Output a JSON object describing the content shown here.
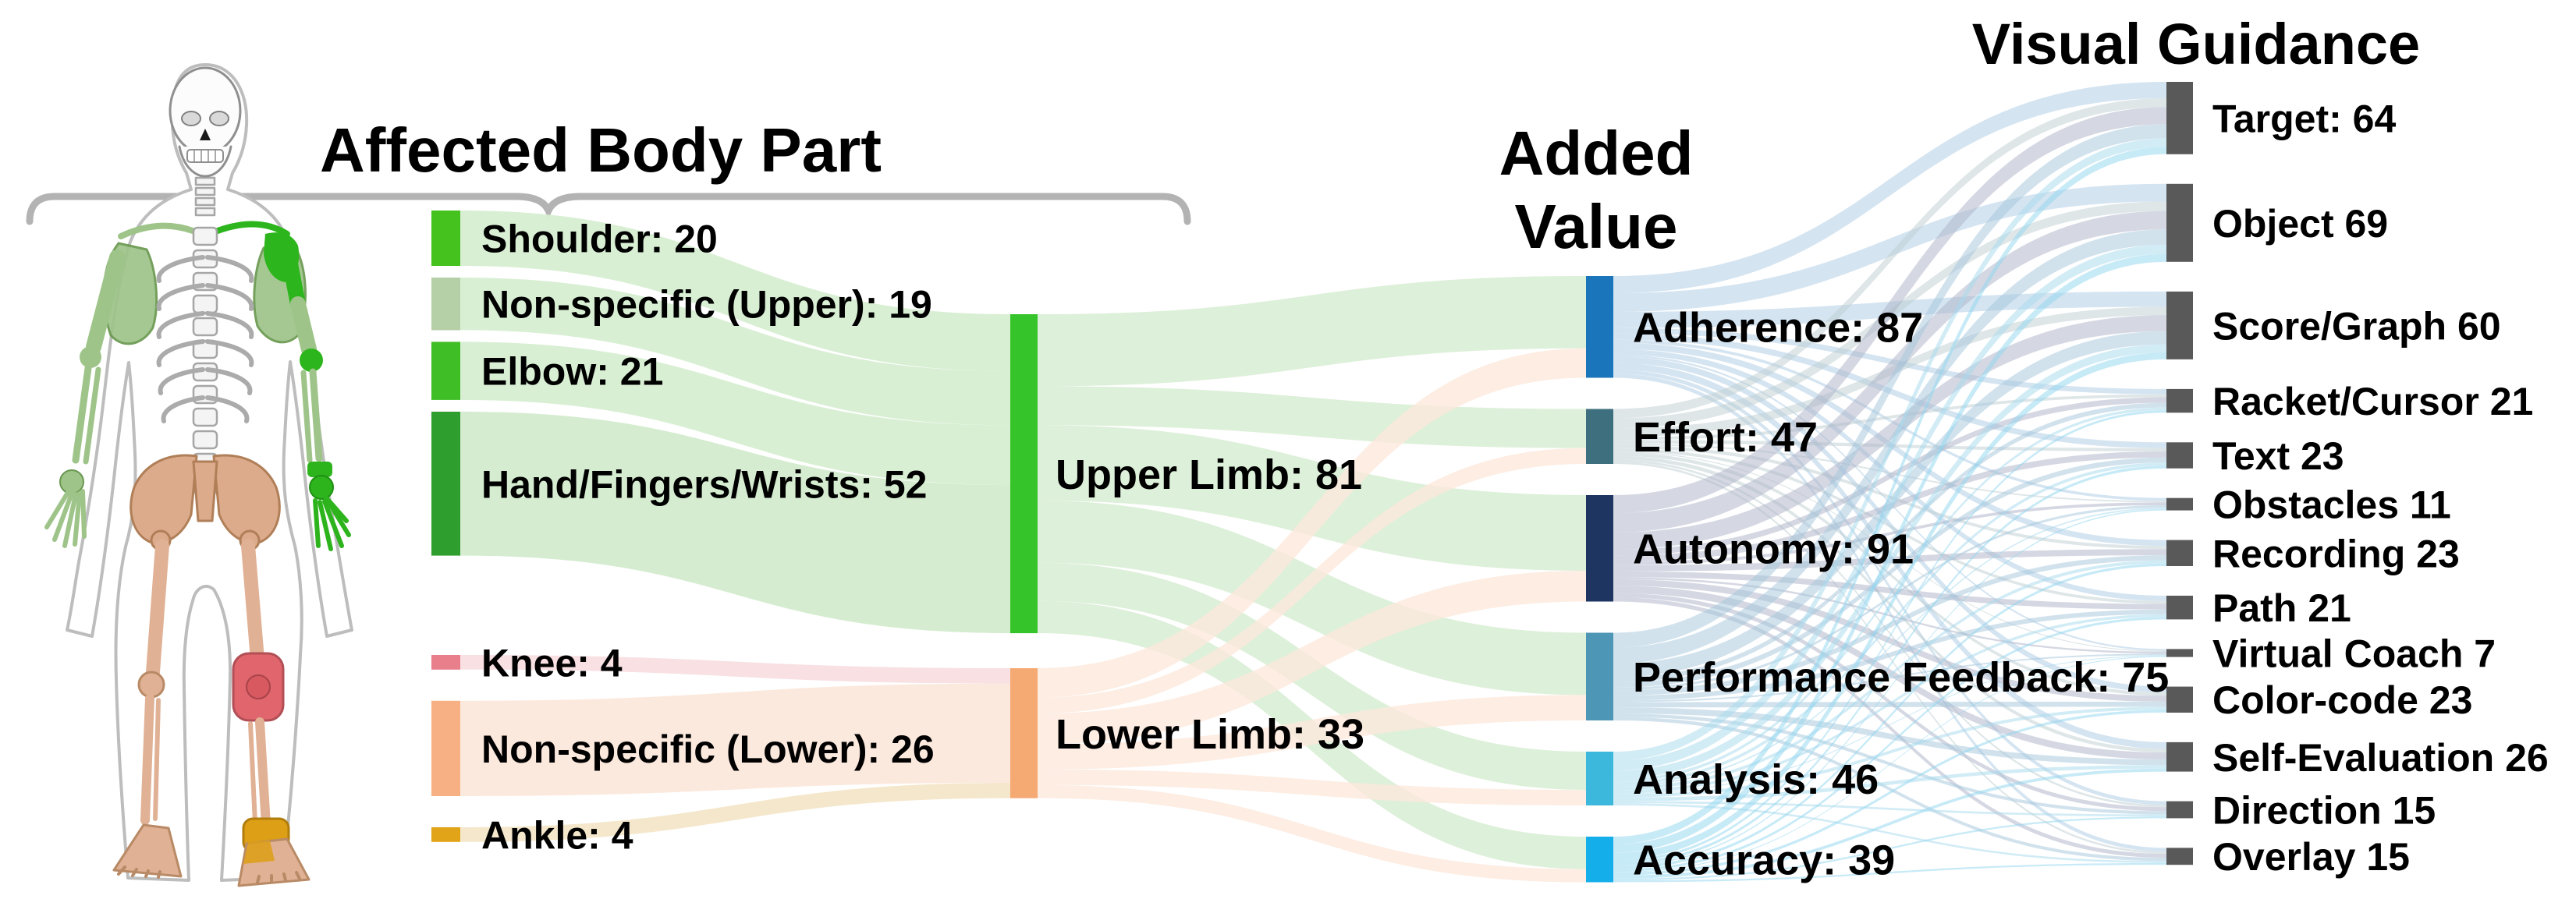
{
  "chart_data": {
    "type": "sankey",
    "titles": {
      "body_part": "Affected Body Part",
      "added_value_line1": "Added",
      "added_value_line2": "Value",
      "visual_guidance": "Visual Guidance"
    },
    "columns": [
      {
        "id": "affected-body-part",
        "nodes": [
          {
            "name": "Shoulder",
            "label": "Shoulder: 20",
            "value": 20,
            "color": "#45c21d",
            "flow": "#d7eed2",
            "group": "upper"
          },
          {
            "name": "Non-specific (Upper)",
            "label": "Non-specific (Upper): 19",
            "value": 19,
            "color": "#b5cfa6",
            "flow": "#d7eed2",
            "group": "upper"
          },
          {
            "name": "Elbow",
            "label": "Elbow: 21",
            "value": 21,
            "color": "#3fbe26",
            "flow": "#d7eed2",
            "group": "upper"
          },
          {
            "name": "Hand/Fingers/Wrists",
            "label": "Hand/Fingers/Wrists: 52",
            "value": 52,
            "color": "#2e9e2e",
            "flow": "#d3ebce",
            "group": "upper"
          },
          {
            "name": "Knee",
            "label": "Knee: 4",
            "value": 4,
            "color": "#e87f8b",
            "flow": "#f8dee1",
            "group": "lower"
          },
          {
            "name": "Non-specific (Lower)",
            "label": "Non-specific (Lower): 26",
            "value": 26,
            "color": "#f7b083",
            "flow": "#fce8dc",
            "group": "lower"
          },
          {
            "name": "Ankle",
            "label": "Ankle: 4",
            "value": 4,
            "color": "#e1a419",
            "flow": "#f3e6c8",
            "group": "lower"
          }
        ]
      },
      {
        "id": "limb",
        "nodes": [
          {
            "name": "Upper Limb",
            "label": "Upper Limb: 81",
            "value": 81,
            "color": "#35c42a",
            "flow": "#d5ecd0",
            "group": "upper"
          },
          {
            "name": "Lower Limb",
            "label": "Lower Limb: 33",
            "value": 33,
            "color": "#f5a973",
            "flow": "#fce8dc",
            "group": "lower"
          }
        ]
      },
      {
        "id": "added-value",
        "nodes": [
          {
            "name": "Adherence",
            "label": "Adherence: 87",
            "value": 87,
            "color": "#1b75bb",
            "flow": "#aac9e4"
          },
          {
            "name": "Effort",
            "label": "Effort: 47",
            "value": 47,
            "color": "#3e6f7e",
            "flow": "#bdcdd2"
          },
          {
            "name": "Autonomy",
            "label": "Autonomy: 91",
            "value": 91,
            "color": "#1e3461",
            "flow": "#abb1c8"
          },
          {
            "name": "Performance Feedback",
            "label": "Performance Feedback: 75",
            "value": 75,
            "color": "#4e96b5",
            "flow": "#a3c6dc"
          },
          {
            "name": "Analysis",
            "label": "Analysis: 46",
            "value": 46,
            "color": "#3cb8dc",
            "flow": "#a6d9ee"
          },
          {
            "name": "Accuracy",
            "label": "Accuracy: 39",
            "value": 39,
            "color": "#14aeea",
            "flow": "#90d5f0"
          }
        ]
      },
      {
        "id": "visual-guidance",
        "nodes": [
          {
            "name": "Target",
            "label": "Target: 64",
            "value": 64,
            "color": "#595959"
          },
          {
            "name": "Object",
            "label": "Object 69",
            "value": 69,
            "color": "#595959"
          },
          {
            "name": "Score/Graph",
            "label": "Score/Graph 60",
            "value": 60,
            "color": "#595959"
          },
          {
            "name": "Racket/Cursor",
            "label": "Racket/Cursor 21",
            "value": 21,
            "color": "#595959"
          },
          {
            "name": "Text",
            "label": "Text 23",
            "value": 23,
            "color": "#595959"
          },
          {
            "name": "Obstacles",
            "label": "Obstacles 11",
            "value": 11,
            "color": "#595959"
          },
          {
            "name": "Recording",
            "label": "Recording 23",
            "value": 23,
            "color": "#595959"
          },
          {
            "name": "Path",
            "label": "Path 21",
            "value": 21,
            "color": "#595959"
          },
          {
            "name": "Virtual Coach",
            "label": "Virtual Coach 7",
            "value": 7,
            "color": "#595959"
          },
          {
            "name": "Color-code",
            "label": "Color-code 23",
            "value": 23,
            "color": "#595959"
          },
          {
            "name": "Self-Evaluation",
            "label": "Self-Evaluation 26",
            "value": 26,
            "color": "#595959"
          },
          {
            "name": "Direction",
            "label": "Direction 15",
            "value": 15,
            "color": "#595959"
          },
          {
            "name": "Overlay",
            "label": "Overlay 15",
            "value": 15,
            "color": "#595959"
          }
        ]
      }
    ],
    "legend_note_colors": {
      "upper_limb_highlight": "#2cb51c",
      "upper_limb_soft": "#9ec489",
      "lower_limb_bone": "#dcab8c",
      "knee_highlight": "#e0656c",
      "ankle_highlight": "#dd9f15",
      "bracket_gray": "#b3b3b3",
      "node_gray": "#595959"
    }
  }
}
